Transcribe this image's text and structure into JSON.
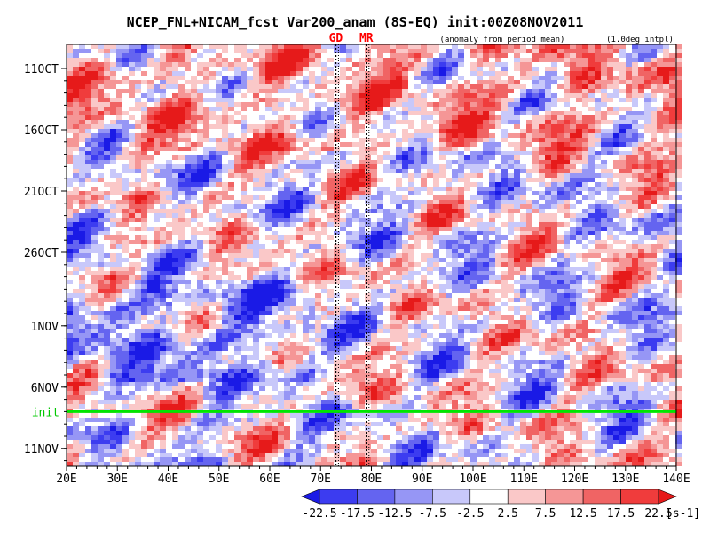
{
  "chart_data": {
    "type": "heatmap",
    "title": "NCEP_FNL+NICAM_fcst Var200_anam (8S-EQ) init:00Z08NOV2011",
    "subtitle": "(anomaly from period mean)",
    "note": "(1.0deg intpl)",
    "x_ticks": [
      "20E",
      "30E",
      "40E",
      "50E",
      "60E",
      "70E",
      "80E",
      "90E",
      "100E",
      "110E",
      "120E",
      "130E",
      "140E"
    ],
    "xlim": [
      20,
      140
    ],
    "y_ticks": [
      "11OCT",
      "16OCT",
      "21OCT",
      "26OCT",
      "1NOV",
      "6NOV",
      "11NOV"
    ],
    "markers": [
      {
        "label": "GD",
        "lon": 73
      },
      {
        "label": "MR",
        "lon": 79
      }
    ],
    "init_line": {
      "label": "init",
      "date": "8NOV"
    },
    "colorbar": {
      "levels": [
        "-22.5",
        "-17.5",
        "-12.5",
        "-7.5",
        "-2.5",
        "2.5",
        "7.5",
        "12.5",
        "17.5",
        "22.5"
      ],
      "colors": [
        "#1a1ae6",
        "#3c3cf0",
        "#6464f0",
        "#9696f5",
        "#c8c8fa",
        "#ffffff",
        "#fac8c8",
        "#f59696",
        "#f06464",
        "#f03c3c",
        "#e61a1a"
      ],
      "unit": "[s-1]"
    },
    "grid": false
  }
}
